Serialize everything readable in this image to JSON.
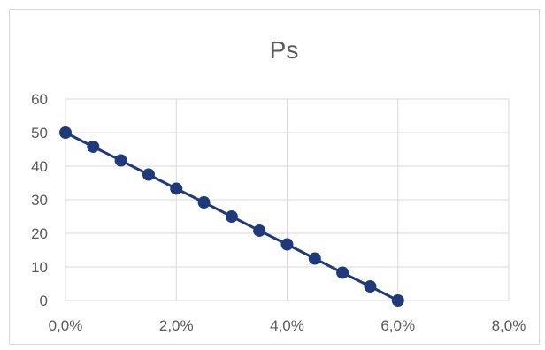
{
  "chart_data": {
    "type": "line",
    "title": "Ps",
    "xlabel": "",
    "ylabel": "",
    "x": [
      0,
      0.5,
      1,
      1.5,
      2,
      2.5,
      3,
      3.5,
      4,
      4.5,
      5,
      5.5,
      6
    ],
    "series": [
      {
        "values": [
          50,
          45.8,
          41.7,
          37.5,
          33.3,
          29.2,
          25,
          20.8,
          16.7,
          12.5,
          8.3,
          4.2,
          0
        ],
        "color": "#1f3a7a",
        "marker": "circle"
      }
    ],
    "xlim": [
      0,
      8
    ],
    "ylim": [
      0,
      60
    ],
    "x_ticks": [
      0,
      2,
      4,
      6,
      8
    ],
    "x_tick_labels": [
      "0,0%",
      "2,0%",
      "4,0%",
      "6,0%",
      "8,0%"
    ],
    "y_ticks": [
      0,
      10,
      20,
      30,
      40,
      50,
      60
    ],
    "y_tick_labels": [
      "0",
      "10",
      "20",
      "30",
      "40",
      "50",
      "60"
    ],
    "grid": true,
    "legend": "none"
  }
}
